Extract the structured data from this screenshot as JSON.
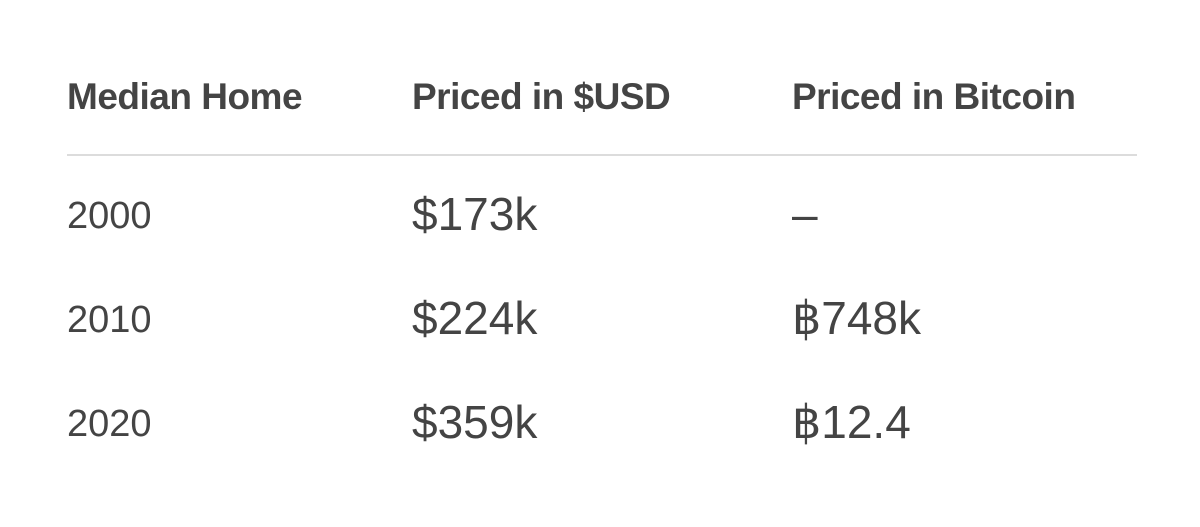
{
  "chart_data": {
    "type": "table",
    "columns": [
      "Median Home",
      "Priced in $USD",
      "Priced in Bitcoin"
    ],
    "rows": [
      {
        "year": "2000",
        "usd": "$173k",
        "btc": "–"
      },
      {
        "year": "2010",
        "usd": "$224k",
        "btc": "฿748k"
      },
      {
        "year": "2020",
        "usd": "$359k",
        "btc": "฿12.4"
      }
    ]
  }
}
